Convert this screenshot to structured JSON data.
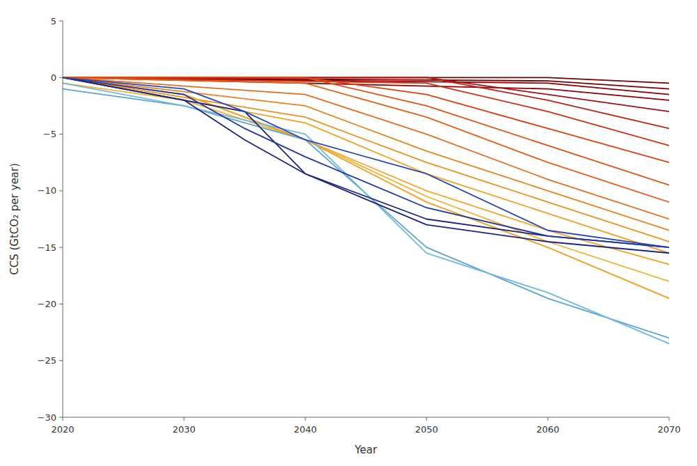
{
  "chart_data": {
    "type": "line",
    "xlabel": "Year",
    "ylabel": "CCS (GtCO₂ per year)",
    "xlim": [
      2020,
      2070
    ],
    "ylim": [
      -30,
      5
    ],
    "xticks": [
      2020,
      2030,
      2040,
      2050,
      2060,
      2070
    ],
    "yticks": [
      5,
      0,
      {
        "value": -5,
        "label": "−5"
      },
      {
        "value": -10,
        "label": "−10"
      },
      {
        "value": -15,
        "label": "−15"
      },
      {
        "value": -20,
        "label": "−20"
      },
      {
        "value": -25,
        "label": "−25"
      },
      {
        "value": -30,
        "label": "−30"
      }
    ],
    "grid": false,
    "series": [
      {
        "color": "#7a0000",
        "x": [
          2020,
          2060,
          2070
        ],
        "values": [
          0,
          0,
          -0.5
        ]
      },
      {
        "color": "#7a0000",
        "x": [
          2020,
          2060,
          2070
        ],
        "values": [
          0,
          -0.3,
          -1.0
        ]
      },
      {
        "color": "#8b0000",
        "x": [
          2020,
          2060,
          2070
        ],
        "values": [
          0,
          -0.5,
          -1.5
        ]
      },
      {
        "color": "#8b0000",
        "x": [
          2020,
          2060,
          2070
        ],
        "values": [
          0,
          -1.0,
          -2.0
        ]
      },
      {
        "color": "#a01010",
        "x": [
          2020,
          2050,
          2060,
          2070
        ],
        "values": [
          0,
          0,
          -1.5,
          -3.0
        ]
      },
      {
        "color": "#b82010",
        "x": [
          2020,
          2050,
          2060,
          2070
        ],
        "values": [
          0,
          0,
          -2.0,
          -4.5
        ]
      },
      {
        "color": "#cc3010",
        "x": [
          2020,
          2050,
          2060,
          2070
        ],
        "values": [
          0,
          -0.5,
          -3.0,
          -6.0
        ]
      },
      {
        "color": "#d84010",
        "x": [
          2020,
          2040,
          2050,
          2060,
          2070
        ],
        "values": [
          0,
          0,
          -1.5,
          -4.5,
          -7.5
        ]
      },
      {
        "color": "#e05010",
        "x": [
          2020,
          2040,
          2050,
          2060,
          2070
        ],
        "values": [
          0,
          0,
          -2.5,
          -6.0,
          -9.5
        ]
      },
      {
        "color": "#e06015",
        "x": [
          2020,
          2040,
          2050,
          2060,
          2070
        ],
        "values": [
          0,
          -0.5,
          -3.5,
          -7.5,
          -11.0
        ]
      },
      {
        "color": "#e07020",
        "x": [
          2020,
          2040,
          2050,
          2060,
          2070
        ],
        "values": [
          0,
          -1.5,
          -5.0,
          -9.0,
          -12.5
        ]
      },
      {
        "color": "#e88020",
        "x": [
          2020,
          2040,
          2050,
          2060,
          2070
        ],
        "values": [
          0,
          -2.5,
          -6.5,
          -10.0,
          -13.5
        ]
      },
      {
        "color": "#e89020",
        "x": [
          2020,
          2040,
          2050,
          2060,
          2070
        ],
        "values": [
          0,
          -3.5,
          -7.5,
          -11.0,
          -14.5
        ]
      },
      {
        "color": "#f0a025",
        "x": [
          2020,
          2040,
          2050,
          2060,
          2070
        ],
        "values": [
          0,
          -4.0,
          -8.5,
          -12.0,
          -15.5
        ]
      },
      {
        "color": "#f0a830",
        "x": [
          2020,
          2030,
          2040,
          2050,
          2060,
          2070
        ],
        "values": [
          0,
          -1.5,
          -5.5,
          -10.0,
          -13.5,
          -16.5
        ]
      },
      {
        "color": "#f0b030",
        "x": [
          2020,
          2030,
          2040,
          2050,
          2060,
          2070
        ],
        "values": [
          -0.5,
          -2.0,
          -5.5,
          -10.5,
          -14.5,
          -18.0
        ]
      },
      {
        "color": "#f0a020",
        "x": [
          2020,
          2030,
          2040,
          2050,
          2060,
          2070
        ],
        "values": [
          0,
          -1.5,
          -5.5,
          -11.0,
          -15.0,
          -19.5
        ]
      },
      {
        "color": "#5ba3d0",
        "x": [
          2020,
          2020,
          2030,
          2040,
          2050,
          2060,
          2070
        ],
        "values": [
          -1.0,
          -1.0,
          -2.5,
          -5.5,
          -15.0,
          -19.5,
          -23.0
        ]
      },
      {
        "color": "#70b8e0",
        "x": [
          2020,
          2030,
          2040,
          2050,
          2060,
          2070
        ],
        "values": [
          -0.5,
          -2.5,
          -5.0,
          -15.5,
          -19.0,
          -23.5
        ]
      },
      {
        "color": "#1a237e",
        "x": [
          2020,
          2030,
          2035,
          2040,
          2050,
          2060,
          2070
        ],
        "values": [
          0,
          -2.0,
          -3.0,
          -8.5,
          -13.0,
          -14.5,
          -15.5
        ]
      },
      {
        "color": "#1a237e",
        "x": [
          2020,
          2030,
          2035,
          2040,
          2050,
          2060,
          2070
        ],
        "values": [
          0,
          -2.0,
          -5.5,
          -8.5,
          -12.5,
          -14.0,
          -15.0
        ]
      },
      {
        "color": "#2035a0",
        "x": [
          2020,
          2030,
          2035,
          2040,
          2050,
          2060,
          2070
        ],
        "values": [
          0,
          -1.5,
          -4.5,
          -7.0,
          -11.5,
          -14.0,
          -15.0
        ]
      },
      {
        "color": "#2a45b5",
        "x": [
          2020,
          2030,
          2035,
          2040,
          2050,
          2060,
          2070
        ],
        "values": [
          0,
          -1.0,
          -3.0,
          -5.5,
          -8.5,
          -13.5,
          -15.0
        ]
      }
    ]
  }
}
